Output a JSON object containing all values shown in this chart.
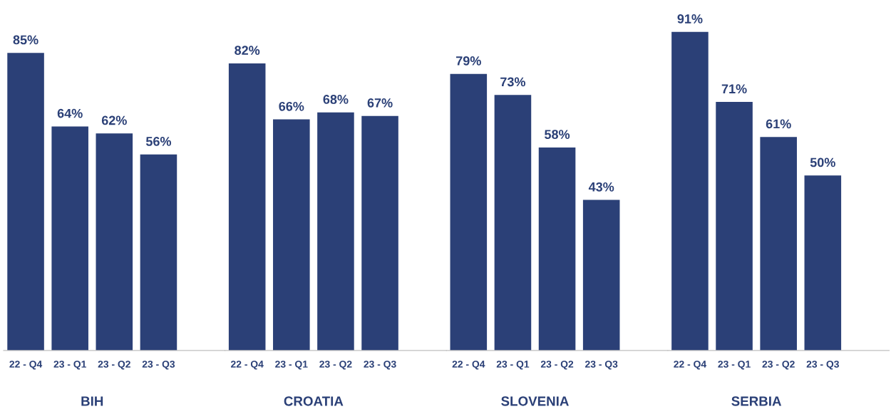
{
  "chart_data": [
    {
      "type": "bar",
      "xlabel": "BIH",
      "categories": [
        "22 - Q4",
        "23 - Q1",
        "23 - Q2",
        "23 - Q3"
      ],
      "values": [
        85,
        64,
        62,
        56
      ],
      "value_labels": [
        "85%",
        "64%",
        "62%",
        "56%"
      ],
      "color": "#2b4077",
      "grid": false,
      "legend": false
    },
    {
      "type": "bar",
      "xlabel": "CROATIA",
      "categories": [
        "22 - Q4",
        "23 - Q1",
        "23 - Q2",
        "23 - Q3"
      ],
      "values": [
        82,
        66,
        68,
        67
      ],
      "value_labels": [
        "82%",
        "66%",
        "68%",
        "67%"
      ],
      "color": "#2b4077",
      "grid": false,
      "legend": false
    },
    {
      "type": "bar",
      "xlabel": "SLOVENIA",
      "categories": [
        "22 - Q4",
        "23 - Q1",
        "23 - Q2",
        "23 - Q3"
      ],
      "values": [
        79,
        73,
        58,
        43
      ],
      "value_labels": [
        "79%",
        "73%",
        "58%",
        "43%"
      ],
      "color": "#2b4077",
      "grid": false,
      "legend": false
    },
    {
      "type": "bar",
      "xlabel": "SERBIA",
      "categories": [
        "22 - Q4",
        "23 - Q1",
        "23 - Q2",
        "23 - Q3"
      ],
      "values": [
        91,
        71,
        61,
        50
      ],
      "value_labels": [
        "91%",
        "71%",
        "61%",
        "50%"
      ],
      "color": "#2b4077",
      "grid": false,
      "legend": false
    }
  ]
}
